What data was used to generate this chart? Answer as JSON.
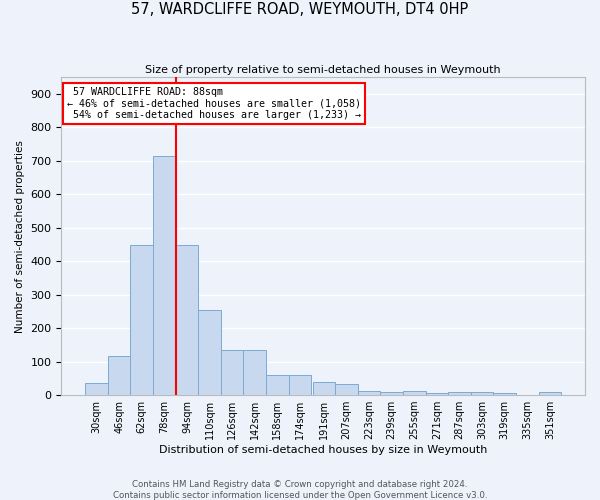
{
  "title": "57, WARDCLIFFE ROAD, WEYMOUTH, DT4 0HP",
  "subtitle": "Size of property relative to semi-detached houses in Weymouth",
  "xlabel": "Distribution of semi-detached houses by size in Weymouth",
  "ylabel": "Number of semi-detached properties",
  "bar_labels": [
    "30sqm",
    "46sqm",
    "62sqm",
    "78sqm",
    "94sqm",
    "110sqm",
    "126sqm",
    "142sqm",
    "158sqm",
    "174sqm",
    "191sqm",
    "207sqm",
    "223sqm",
    "239sqm",
    "255sqm",
    "271sqm",
    "287sqm",
    "303sqm",
    "319sqm",
    "335sqm",
    "351sqm"
  ],
  "bar_values": [
    35,
    118,
    448,
    715,
    448,
    255,
    135,
    135,
    60,
    60,
    38,
    32,
    12,
    8,
    12,
    5,
    10,
    8,
    5,
    0,
    10
  ],
  "bar_color": "#c8d8ee",
  "bar_edge_color": "#7baad4",
  "property_label": "57 WARDCLIFFE ROAD: 88sqm",
  "pct_smaller": 46,
  "n_smaller": 1058,
  "pct_larger": 54,
  "n_larger": 1233,
  "vline_x": 86,
  "vline_color": "red",
  "ylim": [
    0,
    950
  ],
  "yticks": [
    0,
    100,
    200,
    300,
    400,
    500,
    600,
    700,
    800,
    900
  ],
  "annotation_box_color": "white",
  "annotation_box_edge": "red",
  "footer_text": "Contains HM Land Registry data © Crown copyright and database right 2024.\nContains public sector information licensed under the Open Government Licence v3.0.",
  "bg_color": "#eef2fb",
  "grid_color": "white",
  "spine_color": "#bbbbbb"
}
